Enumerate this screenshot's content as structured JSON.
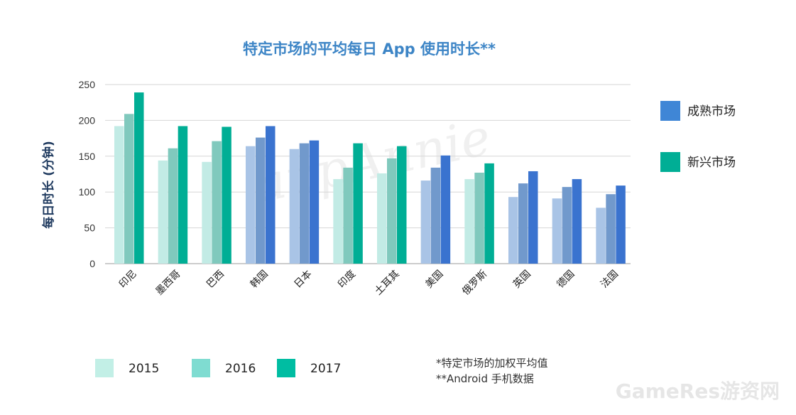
{
  "chart_data": {
    "type": "bar",
    "title": "特定市场的平均每日 App 使用时长**",
    "ylabel": "每日时长 (分钟)",
    "xlabel": "",
    "ylim": [
      0,
      250
    ],
    "yticks": [
      0,
      50,
      100,
      150,
      200,
      250
    ],
    "grid": true,
    "categories": [
      "印尼",
      "墨西哥",
      "巴西",
      "韩国",
      "日本",
      "印度",
      "土耳其",
      "美国",
      "俄罗斯",
      "英国",
      "德国",
      "法国"
    ],
    "market_type": [
      "emerging",
      "emerging",
      "emerging",
      "mature",
      "mature",
      "emerging",
      "emerging",
      "mature",
      "emerging",
      "mature",
      "mature",
      "mature"
    ],
    "series": [
      {
        "name": "2015",
        "values": [
          192,
          144,
          142,
          164,
          160,
          118,
          126,
          116,
          118,
          93,
          91,
          78
        ]
      },
      {
        "name": "2016",
        "values": [
          209,
          161,
          171,
          176,
          168,
          134,
          147,
          134,
          127,
          112,
          107,
          97
        ]
      },
      {
        "name": "2017",
        "values": [
          239,
          192,
          191,
          192,
          172,
          168,
          164,
          151,
          140,
          129,
          118,
          109
        ]
      }
    ],
    "colors": {
      "emerging": [
        "#c2ebe5",
        "#80c9bd",
        "#00ae95"
      ],
      "mature": [
        "#a9c4e6",
        "#7199cc",
        "#3a73cf"
      ]
    },
    "market_legend": [
      {
        "label": "成熟市场",
        "color": "#3f86d6"
      },
      {
        "label": "新兴市场",
        "color": "#00ae95"
      }
    ],
    "year_legend": [
      {
        "label": "2015",
        "color": "#c2efe6"
      },
      {
        "label": "2016",
        "color": "#7fdcd1"
      },
      {
        "label": "2017",
        "color": "#00bda2"
      }
    ],
    "notes": [
      "*特定市场的加权平均值",
      "**Android 手机数据"
    ],
    "watermark": "appAnnie",
    "corner_mark": "GameRes游资网"
  }
}
